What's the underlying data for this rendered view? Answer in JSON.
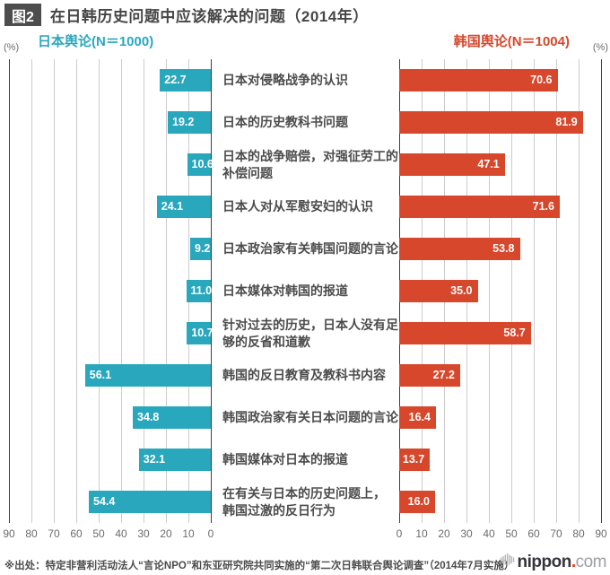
{
  "header": {
    "fig_label": "图2",
    "title": "在日韩历史问题中应该解决的问题（2014年）"
  },
  "legend": {
    "left": {
      "label": "日本舆论(N＝1000)"
    },
    "right": {
      "label": "韩国舆论(N＝1004)"
    },
    "unit": "(%)"
  },
  "chart_data": {
    "type": "bar",
    "orientation": "horizontal-diverging",
    "title": "在日韩历史问题中应该解决的问题（2014年）",
    "unit": "%",
    "axis_max": 90,
    "grid": true,
    "axis_ticks_left": [
      90,
      80,
      70,
      60,
      50,
      40,
      30,
      20,
      10,
      0
    ],
    "axis_ticks_right": [
      0,
      10,
      20,
      30,
      40,
      50,
      60,
      70,
      80,
      90
    ],
    "categories": [
      [
        "日本对侵略战争的认识"
      ],
      [
        "日本的历史教科书问题"
      ],
      [
        "日本的战争赔偿，对强征劳工的",
        "补偿问题"
      ],
      [
        "日本人对从军慰安妇的认识"
      ],
      [
        "日本政治家有关韩国问题的言论"
      ],
      [
        "日本媒体对韩国的报道"
      ],
      [
        "针对过去的历史，日本人没有足",
        "够的反省和道歉"
      ],
      [
        "韩国的反日教育及教科书内容"
      ],
      [
        "韩国政治家有关日本问题的言论"
      ],
      [
        "韩国媒体对日本的报道"
      ],
      [
        "在有关与日本的历史问题上，",
        "韩国过激的反日行为"
      ]
    ],
    "series": [
      {
        "name": "日本舆论(N＝1000)",
        "side": "left",
        "color": "#29a7bd",
        "values": [
          "22.7",
          "19.2",
          "10.6",
          "24.1",
          "9.2",
          "11.0",
          "10.7",
          "56.1",
          "34.8",
          "32.1",
          "54.4"
        ]
      },
      {
        "name": "韩国舆论(N＝1004)",
        "side": "right",
        "color": "#d6472b",
        "values": [
          "70.6",
          "81.9",
          "47.1",
          "71.6",
          "53.8",
          "35.0",
          "58.7",
          "27.2",
          "16.4",
          "13.7",
          "16.0"
        ]
      }
    ]
  },
  "colors": {
    "japan": "#29a7bd",
    "korea": "#d6472b",
    "grid_light": "#cccccc",
    "grid_dark": "#3f3f3f",
    "text_dark": "#4c4c4c"
  },
  "footer": {
    "source": "※出处：特定非营利活动法人“言论NPO”和东亚研究院共同实施的“第二次日韩联合舆论调查”（2014年7月实施）",
    "logo": {
      "name": "nippon",
      "dot": ".",
      "tld": "com"
    }
  }
}
